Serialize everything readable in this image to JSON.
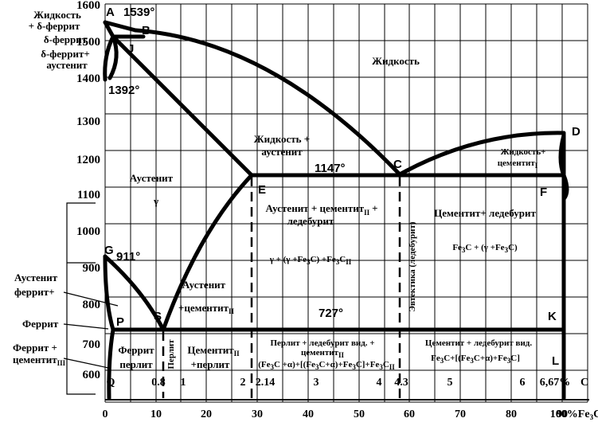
{
  "y_ticks": [
    "1600",
    "1500",
    "1400",
    "1300",
    "1200",
    "1100",
    "1000",
    "900",
    "800",
    "700",
    "600"
  ],
  "x_pct_ticks": [
    "0",
    "10",
    "20",
    "30",
    "40",
    "50",
    "60",
    "70",
    "80",
    "90",
    "100%Fe"
  ],
  "x_pct_unit_sub": "3",
  "x_pct_unit_tail": "C",
  "x_c_ticks": [
    "Q",
    "0.8",
    "1",
    "2",
    "2.14",
    "3",
    "4",
    "4.3",
    "5",
    "6",
    "6,67%",
    "C"
  ],
  "points": {
    "A": "A",
    "B": "B",
    "J": "J",
    "G": "G",
    "P": "P",
    "S": "S",
    "E": "E",
    "C": "C",
    "D": "D",
    "F": "F",
    "K": "K",
    "L": "L"
  },
  "temps": {
    "t1539": "1539°",
    "t1392": "1392°",
    "t1147": "1147°",
    "t911": "911°",
    "t727": "727°"
  },
  "regions": {
    "liquid": "Жидкость",
    "liquid_delta_1": "Жидкость",
    "liquid_delta_2": "+ δ-феррит",
    "delta_ferrite": "δ-феррит",
    "delta_austenite_1": "δ-феррит+",
    "delta_austenite_2": "аустенит",
    "liquid_austenite_1": "Жидкость +",
    "liquid_austenite_2": "аустенит",
    "austenite": "Аустенит",
    "gamma": "γ",
    "liquid_cementite_1": "Жидкость+",
    "liquid_cementite_2": "цементит",
    "liquid_cementite_sub": "I",
    "aust_cem_led_1": "Аустенит + цементит",
    "aust_cem_led_sub": "II",
    "aust_cem_led_plus": "+",
    "aust_cem_led_2": "ледебурит",
    "cem_led": "Цементит+ ледебурит",
    "formula_aust": "γ + (γ +Fe",
    "formula_aust_sub1": "3",
    "formula_aust_mid": "C) +Fe",
    "formula_aust_sub2": "3",
    "formula_aust_tail": "C",
    "formula_aust_tail_sub": "II",
    "formula_cem_1": "Fe",
    "formula_cem_sub1": "3",
    "formula_cem_2": "C  +  (γ +Fe",
    "formula_cem_sub2": "3",
    "formula_cem_3": "C)",
    "eutectic": "Эвтектика (ледебурит)",
    "aust_ferrite_1": "Аустенит",
    "aust_ferrite_2": "феррит+",
    "aust_cementite_1": "Аустенит",
    "aust_cementite_2": "+цементит",
    "aust_cementite_sub": "II",
    "ferrite": "Феррит",
    "ferrite_cem_1": "Феррит +",
    "ferrite_cem_2": "цементит",
    "ferrite_cem_sub": "III",
    "ferrite_perlite_1": "Феррит",
    "ferrite_perlite_2": "перлит",
    "perlite": "Перлит",
    "cem_perlite_1": "Цементит",
    "cem_perlite_sub": "II",
    "cem_perlite_2": "+перлит",
    "perl_led_1": "Перлит + ледебурит вид. +",
    "perl_led_2": "цементит",
    "perl_led_2_sub": "II",
    "perl_led_3": "(Fe",
    "perl_led_3b": "C +α)+[(Fe",
    "perl_led_3c": "C+α)+Fe",
    "perl_led_3d": "C]+Fe",
    "perl_led_3e": "C",
    "perl_led_3_subII": "II",
    "cem_led_vid_1": "Цементит + ледебурит вид.",
    "cem_led_vid_2a": "Fe",
    "cem_led_vid_2b": "C+[(Fe",
    "cem_led_vid_2c": "C+α)+Fe",
    "cem_led_vid_2d": "C]",
    "sub3": "3"
  }
}
